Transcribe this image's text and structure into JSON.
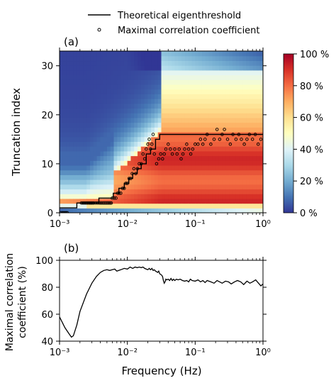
{
  "legend": {
    "line_label": "Theoretical eigenthreshold",
    "marker_label": "Maximal correlation coefficient"
  },
  "chart_data": [
    {
      "panel_label": "(a)",
      "type": "heatmap",
      "xlabel": "",
      "ylabel": "Truncation index",
      "xscale": "log",
      "xlim": [
        0.001,
        1
      ],
      "ylim": [
        0,
        33
      ],
      "xticks": [
        "10⁻³",
        "10⁻²",
        "10⁻¹",
        "10⁰"
      ],
      "yticks": [
        "0",
        "10",
        "20",
        "30"
      ],
      "colorbar": {
        "ticks": [
          "0 %",
          "20 %",
          "40 %",
          "60 %",
          "80 %",
          "100 %"
        ],
        "range": [
          0,
          100
        ],
        "colormap": "RdYlBu_r"
      },
      "series": [
        {
          "name": "Theoretical eigenthreshold",
          "type": "step",
          "x": [
            0.001,
            0.0018,
            0.0018,
            0.0038,
            0.0038,
            0.0062,
            0.0062,
            0.0075,
            0.0075,
            0.009,
            0.009,
            0.0105,
            0.0105,
            0.012,
            0.012,
            0.014,
            0.014,
            0.016,
            0.016,
            0.019,
            0.019,
            0.022,
            0.022,
            0.026,
            0.026,
            0.03,
            0.03,
            1
          ],
          "y": [
            1,
            1,
            2,
            2,
            3,
            3,
            4,
            4,
            5,
            5,
            6,
            6,
            7,
            7,
            8,
            8,
            9,
            9,
            10,
            10,
            12,
            12,
            13,
            13,
            15,
            15,
            16,
            16
          ]
        },
        {
          "name": "Maximal correlation coefficient",
          "type": "scatter",
          "x": [
            0.00105,
            0.0011,
            0.00115,
            0.0012,
            0.00125,
            0.0013,
            0.0021,
            0.0022,
            0.0023,
            0.0024,
            0.0025,
            0.0026,
            0.0027,
            0.0028,
            0.0029,
            0.003,
            0.0031,
            0.0032,
            0.0034,
            0.0036,
            0.0038,
            0.004,
            0.0042,
            0.0044,
            0.0046,
            0.0048,
            0.005,
            0.0052,
            0.0054,
            0.0056,
            0.0058,
            0.006,
            0.0064,
            0.0068,
            0.0072,
            0.0076,
            0.008,
            0.0085,
            0.009,
            0.0095,
            0.01,
            0.0106,
            0.0112,
            0.0118,
            0.0125,
            0.0133,
            0.0141,
            0.015,
            0.016,
            0.017,
            0.018,
            0.019,
            0.02,
            0.021,
            0.022,
            0.023,
            0.024,
            0.025,
            0.027,
            0.029,
            0.031,
            0.033,
            0.035,
            0.037,
            0.04,
            0.043,
            0.046,
            0.05,
            0.054,
            0.058,
            0.062,
            0.066,
            0.07,
            0.075,
            0.08,
            0.086,
            0.092,
            0.1,
            0.11,
            0.12,
            0.13,
            0.14,
            0.15,
            0.17,
            0.19,
            0.21,
            0.23,
            0.25,
            0.27,
            0.3,
            0.33,
            0.36,
            0.4,
            0.44,
            0.48,
            0.53,
            0.58,
            0.63,
            0.7,
            0.77,
            0.85,
            0.93
          ],
          "y": [
            0,
            0,
            0,
            0,
            0,
            0,
            2,
            2,
            2,
            2,
            2,
            2,
            2,
            2,
            2,
            2,
            2,
            2,
            2,
            2,
            2,
            2,
            2,
            2,
            2,
            2,
            2,
            2,
            2,
            2,
            2,
            3,
            3,
            3,
            4,
            4,
            4,
            5,
            5,
            6,
            6,
            7,
            7,
            8,
            9,
            8,
            9,
            10,
            10,
            12,
            11,
            13,
            14,
            15,
            13,
            14,
            16,
            12,
            10,
            11,
            12,
            11,
            12,
            13,
            14,
            13,
            12,
            13,
            12,
            13,
            11,
            12,
            13,
            14,
            13,
            12,
            13,
            14,
            14,
            15,
            14,
            15,
            16,
            14,
            15,
            17,
            15,
            16,
            17,
            15,
            14,
            16,
            15,
            16,
            15,
            14,
            15,
            16,
            15,
            16,
            14,
            15
          ]
        }
      ]
    },
    {
      "panel_label": "(b)",
      "type": "line",
      "xlabel": "Frequency (Hz)",
      "ylabel": "Maximal correlation coefficient (%)",
      "ylabel_lines": [
        "Maximal correlation",
        "coefficient (%)"
      ],
      "xscale": "log",
      "xlim": [
        0.001,
        1
      ],
      "ylim": [
        40,
        100
      ],
      "xticks": [
        "10⁻³",
        "10⁻²",
        "10⁻¹",
        "10⁰"
      ],
      "yticks": [
        "40",
        "60",
        "80",
        "100"
      ],
      "series": [
        {
          "x": [
            0.001,
            0.0012,
            0.0014,
            0.0015,
            0.0016,
            0.0018,
            0.002,
            0.0025,
            0.003,
            0.0035,
            0.004,
            0.0045,
            0.005,
            0.0055,
            0.006,
            0.0065,
            0.007,
            0.008,
            0.009,
            0.01,
            0.011,
            0.012,
            0.013,
            0.014,
            0.015,
            0.016,
            0.017,
            0.018,
            0.019,
            0.02,
            0.021,
            0.022,
            0.023,
            0.024,
            0.025,
            0.026,
            0.027,
            0.028,
            0.029,
            0.03,
            0.031,
            0.032,
            0.033,
            0.034,
            0.035,
            0.036,
            0.037,
            0.038,
            0.04,
            0.042,
            0.044,
            0.046,
            0.048,
            0.05,
            0.053,
            0.056,
            0.06,
            0.065,
            0.07,
            0.075,
            0.08,
            0.085,
            0.09,
            0.1,
            0.11,
            0.12,
            0.13,
            0.14,
            0.15,
            0.17,
            0.19,
            0.21,
            0.23,
            0.25,
            0.28,
            0.31,
            0.34,
            0.38,
            0.42,
            0.47,
            0.52,
            0.58,
            0.64,
            0.7,
            0.78,
            0.86,
            0.93,
            1.0
          ],
          "y": [
            58,
            50,
            45,
            43,
            44,
            52,
            62,
            75,
            83,
            88,
            91,
            92.5,
            93,
            92.5,
            93,
            93.5,
            92,
            93,
            94,
            93.5,
            95,
            94,
            95,
            94.5,
            95,
            94.5,
            95,
            94,
            93.5,
            93,
            94,
            93,
            94,
            92.5,
            93,
            92,
            91.5,
            91,
            92,
            90,
            89.5,
            89,
            88,
            85,
            83,
            84,
            86,
            85.5,
            86,
            85,
            86.5,
            85,
            86,
            85,
            86,
            85.5,
            86,
            85,
            84.5,
            85,
            84,
            86,
            85,
            84.5,
            85.5,
            84,
            85,
            83.5,
            85,
            84,
            83,
            85,
            84,
            83,
            84.5,
            84,
            82.5,
            84,
            85,
            84,
            82,
            84.5,
            83,
            84,
            85.5,
            83,
            81,
            82.5
          ]
        }
      ]
    }
  ]
}
